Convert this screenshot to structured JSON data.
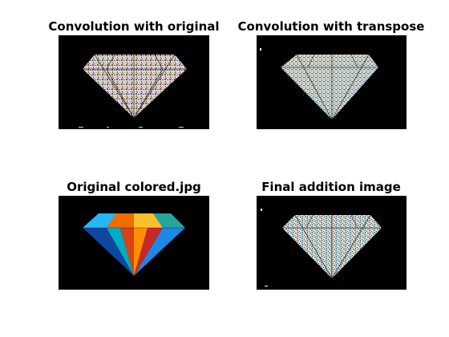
{
  "figure": {
    "background": "#ffffff",
    "panels": [
      {
        "title": "Convolution with original",
        "content": "edge-detected diamond, colorful noisy edges on black"
      },
      {
        "title": "Convolution with transpose",
        "content": "edge-detected diamond, colorful noisy edges on black"
      },
      {
        "title": "Original colored.jpg",
        "content": "colored faceted diamond on black"
      },
      {
        "title": "Final addition image",
        "content": "edge-detected diamond, colorful noisy edges on black"
      }
    ]
  }
}
